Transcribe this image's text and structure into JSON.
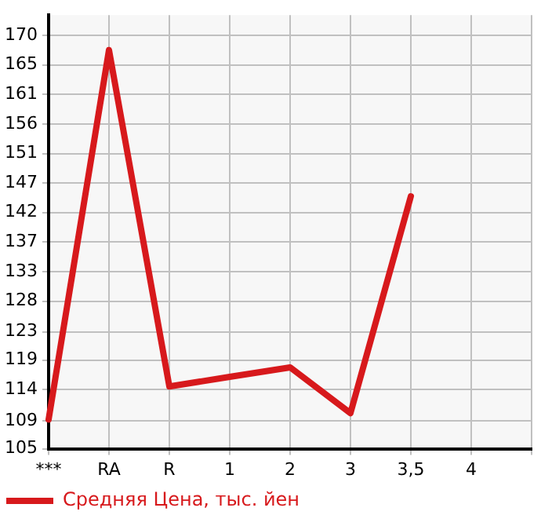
{
  "chart_data": {
    "type": "line",
    "categories": [
      "***",
      "RA",
      "R",
      "1",
      "2",
      "3",
      "3,5",
      "4",
      null
    ],
    "series": [
      {
        "name": "Средняя Цена, тыс. йен",
        "color": "#d7191c",
        "values": [
          109.6,
          167.7,
          114.8,
          116.3,
          117.8,
          110.6,
          144.7,
          null,
          null
        ]
      }
    ],
    "ylim": [
      105,
      173.2
    ],
    "yticks": [
      {
        "value": 105,
        "label": "105"
      },
      {
        "value": 109.4,
        "label": "109"
      },
      {
        "value": 114.29,
        "label": "114"
      },
      {
        "value": 118.93,
        "label": "119"
      },
      {
        "value": 123.4,
        "label": "123"
      },
      {
        "value": 128.21,
        "label": "128"
      },
      {
        "value": 132.86,
        "label": "133"
      },
      {
        "value": 137.5,
        "label": "137"
      },
      {
        "value": 142.14,
        "label": "142"
      },
      {
        "value": 146.79,
        "label": "147"
      },
      {
        "value": 151.43,
        "label": "151"
      },
      {
        "value": 156.07,
        "label": "156"
      },
      {
        "value": 160.71,
        "label": "161"
      },
      {
        "value": 165.36,
        "label": "165"
      },
      {
        "value": 170,
        "label": "170"
      }
    ],
    "grid": true,
    "legend": "bottom left",
    "marker": "none",
    "line_style": "solid"
  }
}
